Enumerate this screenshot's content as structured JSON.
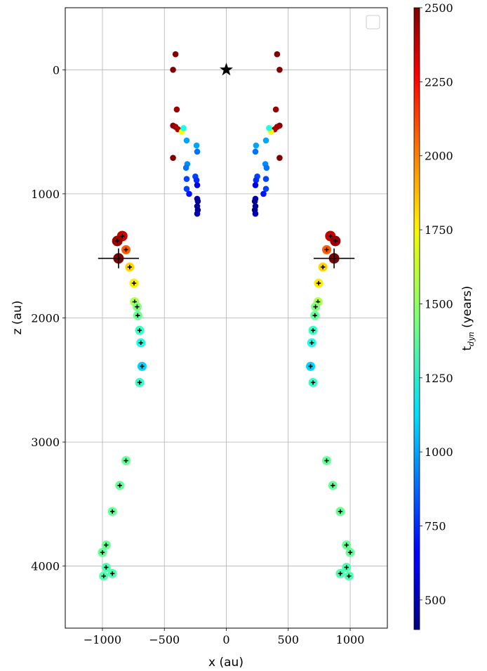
{
  "chart_data": {
    "type": "scatter",
    "title": "",
    "xlabel": "x (au)",
    "ylabel": "z (au)",
    "xlim": [
      -1300,
      1300
    ],
    "ylim": [
      -500,
      4500
    ],
    "y_inverted": true,
    "grid": true,
    "legend": {
      "placement": "top-right",
      "entries": []
    },
    "x_ticks": [
      -1000,
      -500,
      0,
      500,
      1000
    ],
    "x_tick_labels": [
      "−1000",
      "−500",
      "0",
      "500",
      "1000"
    ],
    "y_ticks": [
      0,
      1000,
      2000,
      3000,
      4000
    ],
    "y_tick_labels": [
      "0",
      "1000",
      "2000",
      "3000",
      "4000"
    ],
    "colorbar": {
      "label": "t_dyn (years)",
      "colormap": "jet",
      "range": [
        400,
        2500
      ],
      "ticks": [
        500,
        750,
        1000,
        1250,
        1500,
        1750,
        2000,
        2250,
        2500
      ],
      "tick_labels": [
        "500",
        "750",
        "1000",
        "1250",
        "1500",
        "1750",
        "2000",
        "2250",
        "2500"
      ]
    },
    "source_marker": {
      "x": 0,
      "z": 0,
      "symbol": "star",
      "color": "#000000"
    },
    "inner_points": [
      {
        "x": -410,
        "z": -125,
        "t": 2500
      },
      {
        "x": -430,
        "z": 0,
        "t": 2500
      },
      {
        "x": -400,
        "z": 320,
        "t": 2450
      },
      {
        "x": -430,
        "z": 450,
        "t": 2480
      },
      {
        "x": -410,
        "z": 460,
        "t": 2430
      },
      {
        "x": -390,
        "z": 480,
        "t": 2420
      },
      {
        "x": -360,
        "z": 500,
        "t": 1700
      },
      {
        "x": -345,
        "z": 470,
        "t": 1250
      },
      {
        "x": -320,
        "z": 570,
        "t": 1000
      },
      {
        "x": -430,
        "z": 710,
        "t": 2500
      },
      {
        "x": -240,
        "z": 610,
        "t": 1000
      },
      {
        "x": -235,
        "z": 660,
        "t": 900
      },
      {
        "x": -315,
        "z": 760,
        "t": 950
      },
      {
        "x": -325,
        "z": 790,
        "t": 900
      },
      {
        "x": -250,
        "z": 860,
        "t": 800
      },
      {
        "x": -240,
        "z": 890,
        "t": 750
      },
      {
        "x": -320,
        "z": 880,
        "t": 800
      },
      {
        "x": -320,
        "z": 960,
        "t": 800
      },
      {
        "x": -235,
        "z": 930,
        "t": 600
      },
      {
        "x": -300,
        "z": 1000,
        "t": 700
      },
      {
        "x": -235,
        "z": 1040,
        "t": 500
      },
      {
        "x": -230,
        "z": 1060,
        "t": 450
      },
      {
        "x": -235,
        "z": 1100,
        "t": 450
      },
      {
        "x": -230,
        "z": 1130,
        "t": 420
      },
      {
        "x": -235,
        "z": 1160,
        "t": 500
      },
      {
        "x": 410,
        "z": -125,
        "t": 2500
      },
      {
        "x": 430,
        "z": 0,
        "t": 2500
      },
      {
        "x": 400,
        "z": 320,
        "t": 2450
      },
      {
        "x": 430,
        "z": 450,
        "t": 2480
      },
      {
        "x": 410,
        "z": 460,
        "t": 2430
      },
      {
        "x": 390,
        "z": 480,
        "t": 2420
      },
      {
        "x": 360,
        "z": 500,
        "t": 1700
      },
      {
        "x": 345,
        "z": 470,
        "t": 1250
      },
      {
        "x": 320,
        "z": 570,
        "t": 1000
      },
      {
        "x": 430,
        "z": 710,
        "t": 2500
      },
      {
        "x": 240,
        "z": 610,
        "t": 1000
      },
      {
        "x": 235,
        "z": 660,
        "t": 900
      },
      {
        "x": 315,
        "z": 760,
        "t": 950
      },
      {
        "x": 325,
        "z": 790,
        "t": 900
      },
      {
        "x": 250,
        "z": 860,
        "t": 800
      },
      {
        "x": 240,
        "z": 890,
        "t": 750
      },
      {
        "x": 320,
        "z": 880,
        "t": 800
      },
      {
        "x": 320,
        "z": 960,
        "t": 800
      },
      {
        "x": 235,
        "z": 930,
        "t": 600
      },
      {
        "x": 300,
        "z": 1000,
        "t": 700
      },
      {
        "x": 235,
        "z": 1040,
        "t": 500
      },
      {
        "x": 230,
        "z": 1060,
        "t": 450
      },
      {
        "x": 235,
        "z": 1100,
        "t": 450
      },
      {
        "x": 230,
        "z": 1130,
        "t": 420
      },
      {
        "x": 235,
        "z": 1160,
        "t": 500
      }
    ],
    "outer_points": [
      {
        "x": -840,
        "z": 1340,
        "t": 2350
      },
      {
        "x": -880,
        "z": 1380,
        "t": 2450
      },
      {
        "x": -810,
        "z": 1450,
        "t": 2050
      },
      {
        "x": -870,
        "z": 1520,
        "t": 2500,
        "err_x": 165,
        "err_z": 80
      },
      {
        "x": -780,
        "z": 1590,
        "t": 1800
      },
      {
        "x": -745,
        "z": 1720,
        "t": 1750
      },
      {
        "x": -740,
        "z": 1870,
        "t": 1550
      },
      {
        "x": -720,
        "z": 1910,
        "t": 1450
      },
      {
        "x": -715,
        "z": 1980,
        "t": 1400
      },
      {
        "x": -700,
        "z": 2100,
        "t": 1300
      },
      {
        "x": -690,
        "z": 2200,
        "t": 1250
      },
      {
        "x": -680,
        "z": 2390,
        "t": 1100
      },
      {
        "x": -700,
        "z": 2520,
        "t": 1300
      },
      {
        "x": -810,
        "z": 3150,
        "t": 1400
      },
      {
        "x": -860,
        "z": 3350,
        "t": 1400
      },
      {
        "x": -920,
        "z": 3560,
        "t": 1400
      },
      {
        "x": -970,
        "z": 3830,
        "t": 1400
      },
      {
        "x": -1000,
        "z": 3890,
        "t": 1400
      },
      {
        "x": -970,
        "z": 4010,
        "t": 1350
      },
      {
        "x": -920,
        "z": 4060,
        "t": 1350
      },
      {
        "x": -990,
        "z": 4080,
        "t": 1350
      },
      {
        "x": 840,
        "z": 1340,
        "t": 2350
      },
      {
        "x": 880,
        "z": 1380,
        "t": 2450
      },
      {
        "x": 810,
        "z": 1450,
        "t": 2050
      },
      {
        "x": 870,
        "z": 1520,
        "t": 2500,
        "err_x": 165,
        "err_z": 80
      },
      {
        "x": 780,
        "z": 1590,
        "t": 1800
      },
      {
        "x": 745,
        "z": 1720,
        "t": 1750
      },
      {
        "x": 740,
        "z": 1870,
        "t": 1550
      },
      {
        "x": 720,
        "z": 1910,
        "t": 1450
      },
      {
        "x": 715,
        "z": 1980,
        "t": 1400
      },
      {
        "x": 700,
        "z": 2100,
        "t": 1300
      },
      {
        "x": 690,
        "z": 2200,
        "t": 1250
      },
      {
        "x": 680,
        "z": 2390,
        "t": 1100
      },
      {
        "x": 700,
        "z": 2520,
        "t": 1300
      },
      {
        "x": 810,
        "z": 3150,
        "t": 1400
      },
      {
        "x": 860,
        "z": 3350,
        "t": 1400
      },
      {
        "x": 920,
        "z": 3560,
        "t": 1400
      },
      {
        "x": 970,
        "z": 3830,
        "t": 1400
      },
      {
        "x": 1000,
        "z": 3890,
        "t": 1400
      },
      {
        "x": 970,
        "z": 4010,
        "t": 1350
      },
      {
        "x": 920,
        "z": 4060,
        "t": 1350
      },
      {
        "x": 990,
        "z": 4080,
        "t": 1350
      }
    ]
  }
}
